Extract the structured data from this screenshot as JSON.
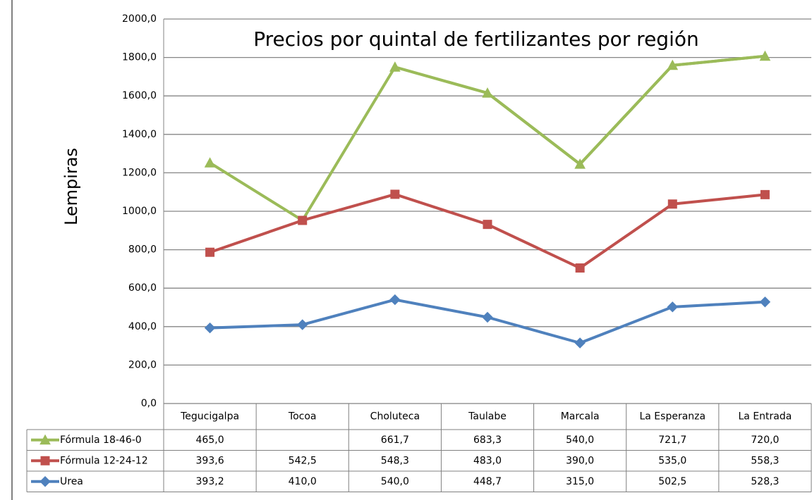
{
  "chart_data": {
    "type": "stacked-line",
    "title": "Precios por quintal de fertilizantes por región",
    "y_label": "Lempiras",
    "categories": [
      "Tegucigalpa",
      "Tocoa",
      "Choluteca",
      "Taulabe",
      "Marcala",
      "La Esperanza",
      "La Entrada"
    ],
    "series": [
      {
        "name": "Fórmula 18-46-0",
        "color": "#9bbb59",
        "marker": "triangle",
        "values": [
          465.0,
          null,
          661.7,
          683.3,
          540.0,
          721.7,
          720.0
        ],
        "value_labels": [
          "465,0",
          null,
          "661,7",
          "683,3",
          "540,0",
          "721,7",
          "720,0"
        ]
      },
      {
        "name": "Fórmula 12-24-12",
        "color": "#c0504d",
        "marker": "square",
        "values": [
          393.6,
          542.5,
          548.3,
          483.0,
          390.0,
          535.0,
          558.3
        ],
        "value_labels": [
          "393,6",
          "542,5",
          "548,3",
          "483,0",
          "390,0",
          "535,0",
          "558,3"
        ]
      },
      {
        "name": "Urea",
        "color": "#4f81bd",
        "marker": "diamond",
        "values": [
          393.2,
          410.0,
          540.0,
          448.7,
          315.0,
          502.5,
          528.3
        ],
        "value_labels": [
          "393,2",
          "410,0",
          "540,0",
          "448,7",
          "315,0",
          "502,5",
          "528,3"
        ]
      }
    ],
    "ylim": [
      0,
      2000
    ],
    "yticks": [
      {
        "value": 0,
        "label": "0,0"
      },
      {
        "value": 200,
        "label": "200,0"
      },
      {
        "value": 400,
        "label": "400,0"
      },
      {
        "value": 600,
        "label": "600,0"
      },
      {
        "value": 800,
        "label": "800,0"
      },
      {
        "value": 1000,
        "label": "1000,0"
      },
      {
        "value": 1200,
        "label": "1200,0"
      },
      {
        "value": 1400,
        "label": "1400,0"
      },
      {
        "value": 1600,
        "label": "1600,0"
      },
      {
        "value": 1800,
        "label": "1800,0"
      },
      {
        "value": 2000,
        "label": "2000,0"
      }
    ],
    "grid": true
  }
}
